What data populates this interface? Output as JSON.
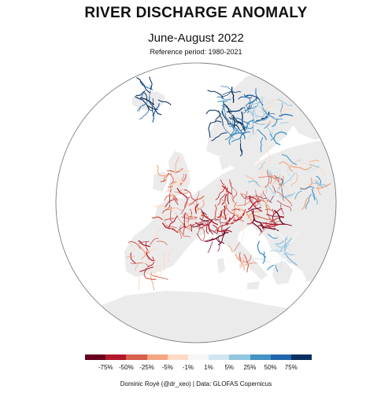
{
  "title": "RIVER DISCHARGE ANOMALY",
  "subtitle": "June-August 2022",
  "reference": "Reference period: 1980-2021",
  "legend": {
    "labels": [
      "-75%",
      "-50%",
      "-25%",
      "-5%",
      "-1%",
      "1%",
      "5%",
      "25%",
      "50%",
      "75%"
    ],
    "colors": [
      "#67001f",
      "#b2182b",
      "#d6604d",
      "#f4a582",
      "#fddbc7",
      "#f7f7f7",
      "#d1e5f0",
      "#92c5de",
      "#4393c3",
      "#2166ac",
      "#053061"
    ]
  },
  "credit": "Dominic Royé (@dr_xeo) | Data: GLOFAS Copernicus",
  "colors": {
    "land": "#ebebeb",
    "globe_outline": "#6f6f6f",
    "dry": "#b2182b",
    "wet": "#2166ac"
  }
}
